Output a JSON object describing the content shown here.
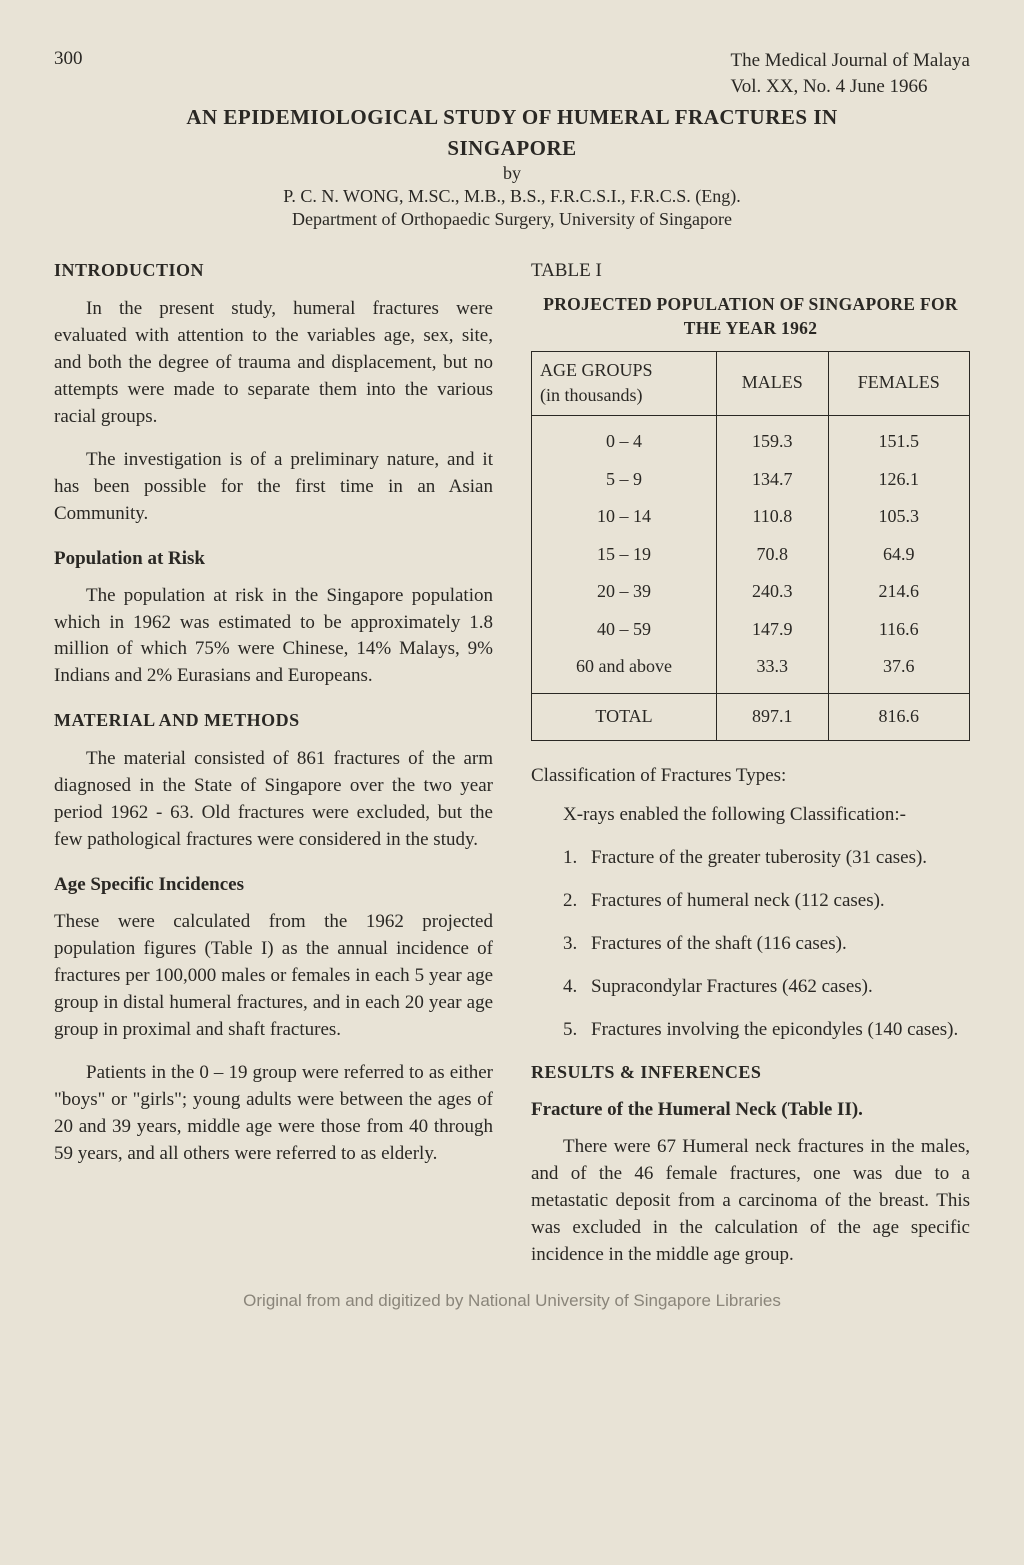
{
  "header": {
    "page_number": "300",
    "journal_name": "The Medical Journal of Malaya",
    "journal_issue": "Vol.  XX,  No.  4   June   1966"
  },
  "title_block": {
    "title_line1": "AN EPIDEMIOLOGICAL STUDY OF HUMERAL FRACTURES IN",
    "title_line2": "SINGAPORE",
    "by": "by",
    "author": "P. C. N. WONG, M.SC., M.B., B.S., F.R.C.S.I., F.R.C.S. (Eng).",
    "department": "Department of Orthopaedic Surgery, University of Singapore"
  },
  "left": {
    "intro_head": "INTRODUCTION",
    "intro_p1": "In the present study, humeral fractures were evaluated with attention to the variables age, sex, site, and both the degree of trauma and displacement, but no attempts were made to separate them into the various racial groups.",
    "intro_p2": "The investigation is of a preliminary nature, and it has been possible for the first time in an Asian Community.",
    "pop_head": "Population at Risk",
    "pop_p1": "The population at risk in the Singapore population which in 1962 was estimated to be approximately 1.8 million of which 75% were Chinese, 14% Malays, 9% Indians and 2% Eurasians and Europeans.",
    "mat_head": "MATERIAL AND METHODS",
    "mat_p1": "The material consisted of 861 fractures of the arm diagnosed in the State of Singapore over the two year period 1962 - 63. Old fractures were excluded, but the few pathological fractures were considered in the study.",
    "age_head": "Age Specific Incidences",
    "age_p1": "These were calculated from the 1962 projected population figures (Table I) as the annual incidence of fractures per 100,000 males or females in each 5 year age group in distal humeral fractures, and in each 20 year age group in proximal and shaft fractures.",
    "age_p2": "Patients in the 0 – 19 group were referred to as either \"boys\" or \"girls\"; young adults were between the ages of 20 and 39 years, middle age were those from 40 through 59 years, and all others were referred to as elderly."
  },
  "right": {
    "table_label": "TABLE I",
    "table_caption": "PROJECTED POPULATION OF SINGAPORE FOR THE YEAR 1962",
    "table": {
      "col1_header_l1": "AGE GROUPS",
      "col1_header_l2": "(in thousands)",
      "col2_header": "MALES",
      "col3_header": "FEMALES",
      "rows": [
        {
          "age": "0 – 4",
          "m": "159.3",
          "f": "151.5"
        },
        {
          "age": "5 – 9",
          "m": "134.7",
          "f": "126.1"
        },
        {
          "age": "10 – 14",
          "m": "110.8",
          "f": "105.3"
        },
        {
          "age": "15 – 19",
          "m": "70.8",
          "f": "64.9"
        },
        {
          "age": "20 – 39",
          "m": "240.3",
          "f": "214.6"
        },
        {
          "age": "40 – 59",
          "m": "147.9",
          "f": "116.6"
        },
        {
          "age": "60 and above",
          "m": "33.3",
          "f": "37.6"
        }
      ],
      "total_label": "TOTAL",
      "total_m": "897.1",
      "total_f": "816.6"
    },
    "class_head": "Classification of Fractures Types:",
    "class_intro": "X-rays enabled the following Classification:-",
    "class_items": [
      {
        "n": "1.",
        "t": "Fracture of the greater tuberosity (31 cases)."
      },
      {
        "n": "2.",
        "t": "Fractures of humeral neck (112 cases)."
      },
      {
        "n": "3.",
        "t": "Fractures of the shaft (116 cases)."
      },
      {
        "n": "4.",
        "t": "Supracondylar Fractures (462 cases)."
      },
      {
        "n": "5.",
        "t": "Fractures involving the epicondyles (140 cases)."
      }
    ],
    "results_head": "RESULTS & INFERENCES",
    "results_sub": "Fracture of the Humeral Neck (Table II).",
    "results_p1": "There were 67 Humeral neck fractures in the males, and of the 46 female fractures, one was due to a metastatic deposit from a carcinoma of the breast. This was excluded in the calculation of the age specific incidence in the middle age group."
  },
  "footer": "Original from and digitized by National University of Singapore Libraries"
}
